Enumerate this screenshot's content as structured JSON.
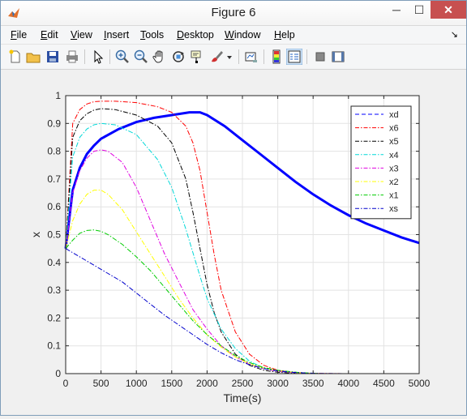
{
  "window": {
    "title": "Figure 6",
    "minimize_glyph": "─",
    "maximize_glyph": "☐",
    "close_glyph": "✕"
  },
  "menu": [
    {
      "label": "File",
      "mn": "F",
      "rest": "ile"
    },
    {
      "label": "Edit",
      "mn": "E",
      "rest": "dit"
    },
    {
      "label": "View",
      "mn": "V",
      "rest": "iew"
    },
    {
      "label": "Insert",
      "mn": "I",
      "rest": "nsert"
    },
    {
      "label": "Tools",
      "mn": "T",
      "rest": "ools"
    },
    {
      "label": "Desktop",
      "mn": "D",
      "rest": "esktop"
    },
    {
      "label": "Window",
      "mn": "W",
      "rest": "indow"
    },
    {
      "label": "Help",
      "mn": "H",
      "rest": "elp"
    }
  ],
  "toolbar_icons": [
    "new-figure-icon",
    "open-file-icon",
    "save-icon",
    "print-icon",
    "pointer-icon",
    "zoom-in-icon",
    "zoom-out-icon",
    "pan-icon",
    "rotate-3d-icon",
    "data-cursor-icon",
    "brush-icon",
    "brush-dropdown-icon",
    "link-plot-icon",
    "colorbar-icon",
    "legend-icon",
    "hide-plot-tools-icon",
    "show-plot-tools-icon"
  ],
  "chart_data": {
    "type": "line",
    "xlabel": "Time(s)",
    "ylabel": "x",
    "xlim": [
      0,
      5000
    ],
    "ylim": [
      0,
      1
    ],
    "xticks": [
      0,
      500,
      1000,
      1500,
      2000,
      2500,
      3000,
      3500,
      4000,
      4500,
      5000
    ],
    "yticks": [
      0,
      0.1,
      0.2,
      0.3,
      0.4,
      0.5,
      0.6,
      0.7,
      0.8,
      0.9,
      1
    ],
    "grid": true,
    "legend_position": "top-right",
    "series": [
      {
        "name": "xd",
        "color": "#0000ff",
        "style": "solid-thick",
        "x": [
          0,
          100,
          200,
          300,
          400,
          500,
          750,
          1000,
          1250,
          1500,
          1750,
          1900,
          2000,
          2250,
          2500,
          2750,
          3000,
          3250,
          3500,
          3750,
          4000,
          4250,
          4500,
          4750,
          5000
        ],
        "y": [
          0.45,
          0.66,
          0.74,
          0.79,
          0.82,
          0.845,
          0.88,
          0.905,
          0.92,
          0.93,
          0.94,
          0.94,
          0.93,
          0.89,
          0.84,
          0.79,
          0.74,
          0.69,
          0.645,
          0.605,
          0.57,
          0.54,
          0.515,
          0.49,
          0.47
        ]
      },
      {
        "name": "x6",
        "color": "#ff0000",
        "style": "dashdot",
        "x": [
          0,
          100,
          200,
          300,
          400,
          500,
          700,
          1000,
          1300,
          1500,
          1700,
          1800,
          1900,
          2000,
          2100,
          2200,
          2400,
          2600,
          2800,
          3000,
          3200,
          3500,
          4000,
          5000
        ],
        "y": [
          0.45,
          0.9,
          0.95,
          0.97,
          0.978,
          0.98,
          0.98,
          0.975,
          0.96,
          0.94,
          0.89,
          0.83,
          0.73,
          0.58,
          0.43,
          0.3,
          0.15,
          0.07,
          0.03,
          0.012,
          0.005,
          0.001,
          0,
          0
        ]
      },
      {
        "name": "x5",
        "color": "#000000",
        "style": "dashdot",
        "x": [
          0,
          100,
          200,
          300,
          400,
          500,
          700,
          1000,
          1300,
          1500,
          1700,
          1800,
          1900,
          2000,
          2100,
          2200,
          2400,
          2600,
          2800,
          3000,
          3200,
          3500,
          5000
        ],
        "y": [
          0.45,
          0.85,
          0.91,
          0.935,
          0.948,
          0.953,
          0.95,
          0.93,
          0.89,
          0.83,
          0.7,
          0.58,
          0.45,
          0.32,
          0.22,
          0.15,
          0.07,
          0.03,
          0.012,
          0.005,
          0.002,
          0,
          0
        ]
      },
      {
        "name": "x4",
        "color": "#00d8d8",
        "style": "dashdot",
        "x": [
          0,
          100,
          200,
          300,
          400,
          500,
          700,
          1000,
          1300,
          1500,
          1700,
          1900,
          2000,
          2200,
          2400,
          2600,
          2800,
          3000,
          3300,
          3600,
          5000
        ],
        "y": [
          0.45,
          0.78,
          0.85,
          0.88,
          0.895,
          0.9,
          0.895,
          0.86,
          0.77,
          0.67,
          0.52,
          0.35,
          0.27,
          0.16,
          0.09,
          0.045,
          0.02,
          0.008,
          0.002,
          0,
          0
        ]
      },
      {
        "name": "x3",
        "color": "#e000e0",
        "style": "dashdot",
        "x": [
          0,
          100,
          200,
          300,
          400,
          500,
          600,
          800,
          1000,
          1200,
          1400,
          1600,
          1800,
          2000,
          2200,
          2400,
          2600,
          2800,
          3000,
          3300,
          3600,
          5000
        ],
        "y": [
          0.45,
          0.65,
          0.73,
          0.775,
          0.8,
          0.805,
          0.8,
          0.76,
          0.67,
          0.55,
          0.43,
          0.33,
          0.23,
          0.16,
          0.1,
          0.06,
          0.035,
          0.018,
          0.008,
          0.002,
          0,
          0
        ]
      },
      {
        "name": "x2",
        "color": "#ffff00",
        "style": "dashdot",
        "x": [
          0,
          100,
          200,
          300,
          400,
          500,
          600,
          800,
          1000,
          1200,
          1400,
          1600,
          1800,
          2000,
          2200,
          2400,
          2600,
          2800,
          3000,
          3300,
          3600,
          5000
        ],
        "y": [
          0.45,
          0.55,
          0.61,
          0.645,
          0.66,
          0.66,
          0.645,
          0.59,
          0.51,
          0.43,
          0.35,
          0.27,
          0.2,
          0.14,
          0.095,
          0.06,
          0.035,
          0.02,
          0.01,
          0.003,
          0,
          0
        ]
      },
      {
        "name": "x1",
        "color": "#00cc00",
        "style": "dashdot",
        "x": [
          0,
          100,
          200,
          300,
          400,
          500,
          600,
          800,
          1000,
          1200,
          1400,
          1600,
          1800,
          2000,
          2200,
          2400,
          2600,
          2800,
          3000,
          3300,
          3600,
          5000
        ],
        "y": [
          0.45,
          0.48,
          0.505,
          0.515,
          0.517,
          0.512,
          0.5,
          0.465,
          0.42,
          0.37,
          0.31,
          0.25,
          0.19,
          0.14,
          0.1,
          0.065,
          0.04,
          0.022,
          0.012,
          0.004,
          0,
          0
        ]
      },
      {
        "name": "xs",
        "color": "#0000cc",
        "style": "dashdot",
        "x": [
          0,
          200,
          400,
          600,
          800,
          1000,
          1200,
          1400,
          1600,
          1800,
          2000,
          2200,
          2400,
          2600,
          2800,
          3000,
          3200,
          3400,
          3600,
          4000,
          5000
        ],
        "y": [
          0.45,
          0.42,
          0.39,
          0.36,
          0.33,
          0.29,
          0.25,
          0.21,
          0.175,
          0.14,
          0.105,
          0.075,
          0.05,
          0.032,
          0.018,
          0.01,
          0.005,
          0.002,
          0.001,
          0,
          0
        ]
      }
    ]
  }
}
